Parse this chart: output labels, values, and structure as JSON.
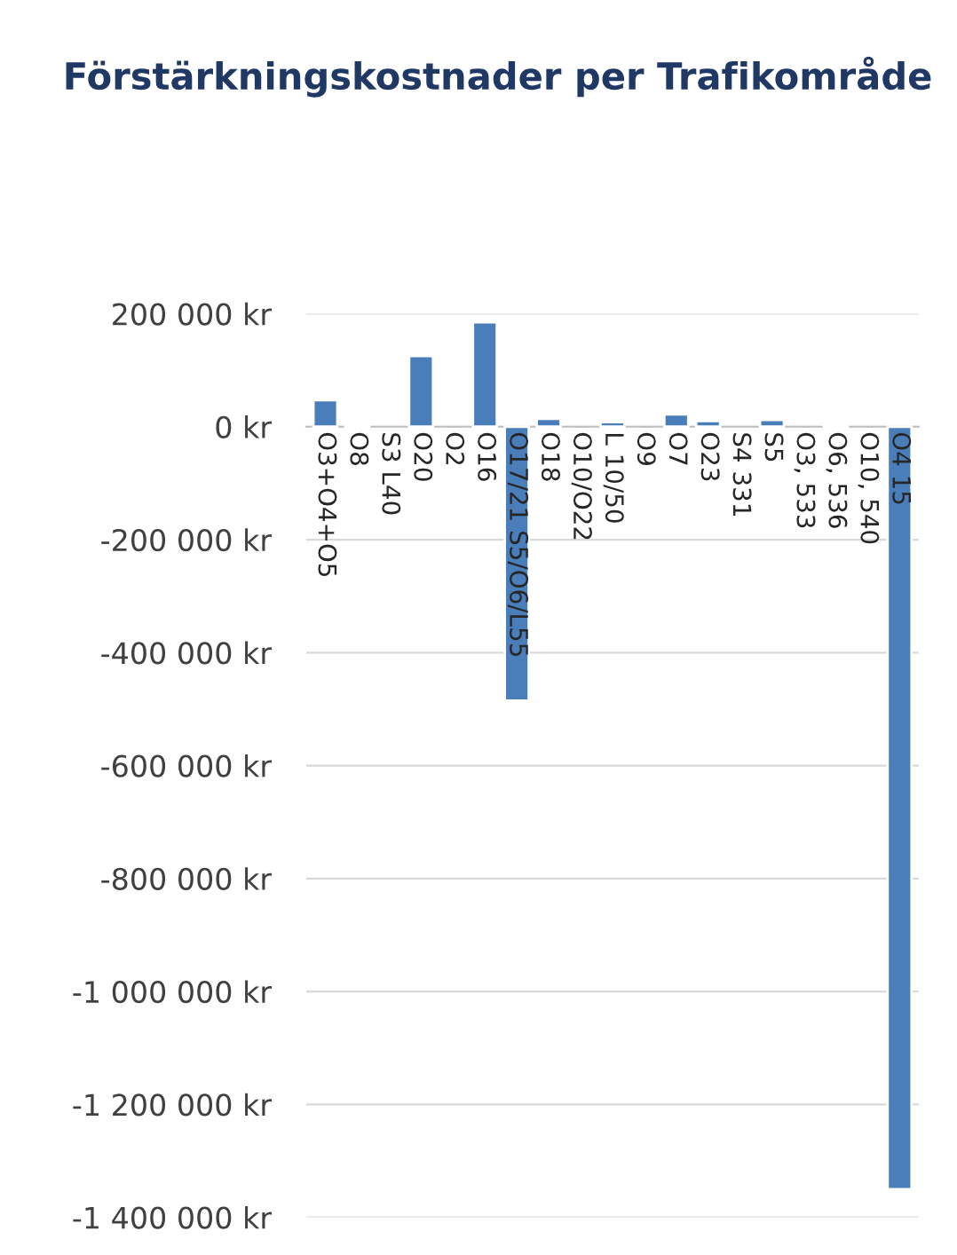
{
  "chart_data": {
    "type": "bar",
    "title": "Förstärkningskostnader per Trafikområde",
    "categories": [
      "O3+O4+O5",
      "O8",
      "S3 L40",
      "O20",
      "O2",
      "O16",
      "O17/21 S5/O6/L55",
      "O18",
      "O10/O22",
      "L 10/50",
      "O9",
      "O7",
      "O23",
      "S4 331",
      "S5",
      "O3, 533",
      "O6, 536",
      "O10, 540",
      "O4 15"
    ],
    "values": [
      47000,
      2000,
      null,
      125000,
      null,
      185000,
      -485000,
      14000,
      null,
      8000,
      null,
      22000,
      10000,
      null,
      12000,
      null,
      2000,
      null,
      -1350000
    ],
    "color": "#4a7ebb",
    "ylim": [
      -1400000,
      200000
    ],
    "yticks": [
      {
        "value": 200000,
        "label": "200 000 kr"
      },
      {
        "value": 0,
        "label": "0 kr"
      },
      {
        "value": -200000,
        "label": "-200 000 kr"
      },
      {
        "value": -400000,
        "label": "-400 000 kr"
      },
      {
        "value": -600000,
        "label": "-600 000 kr"
      },
      {
        "value": -800000,
        "label": "-800 000 kr"
      },
      {
        "value": -1000000,
        "label": "-1 000 000 kr"
      },
      {
        "value": -1200000,
        "label": "-1 200 000 kr"
      },
      {
        "value": -1400000,
        "label": "-1 400 000 kr"
      }
    ],
    "grid": "y"
  }
}
